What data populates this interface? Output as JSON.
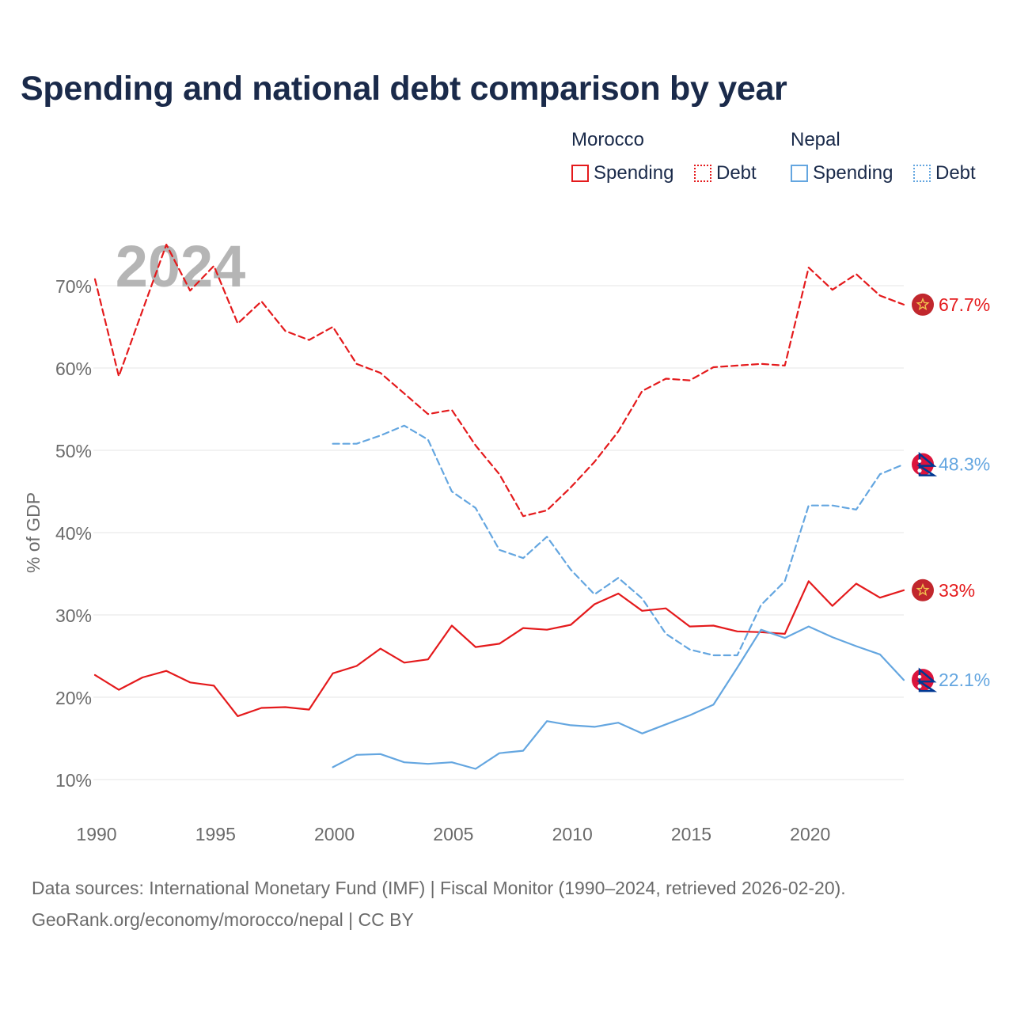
{
  "title": "Spending and national debt comparison by year",
  "legend": {
    "groups": [
      {
        "country": "Morocco",
        "items": [
          {
            "label": "Spending",
            "style": "solid",
            "color": "#e41a1c"
          },
          {
            "label": "Debt",
            "style": "dotted",
            "color": "#e41a1c"
          }
        ]
      },
      {
        "country": "Nepal",
        "items": [
          {
            "label": "Spending",
            "style": "solid",
            "color": "#64a6e0"
          },
          {
            "label": "Debt",
            "style": "dotted",
            "color": "#64a6e0"
          }
        ]
      }
    ]
  },
  "footer": {
    "line1": "Data sources: International Monetary Fund (IMF) | Fiscal Monitor (1990–2024, retrieved 2026-02-20).",
    "line2": "GeoRank.org/economy/morocco/nepal | CC BY"
  },
  "chart_data": {
    "type": "line",
    "title": "Spending and national debt comparison by year",
    "year_label": "2024",
    "ylabel": "% of GDP",
    "xlabel": "",
    "xlim": [
      1990,
      2024
    ],
    "ylim": [
      10,
      75
    ],
    "x_ticks": [
      1990,
      1995,
      2000,
      2005,
      2010,
      2015,
      2020
    ],
    "x_tick_labels": [
      "1990",
      "1995",
      "2000",
      "2005",
      "2010",
      "2015",
      "2020"
    ],
    "y_ticks": [
      10,
      20,
      30,
      40,
      50,
      60,
      70
    ],
    "y_tick_labels": [
      "10%",
      "20%",
      "30%",
      "40%",
      "50%",
      "60%",
      "70%"
    ],
    "grid": true,
    "series": [
      {
        "name": "Morocco Debt",
        "country": "Morocco",
        "metric": "Debt",
        "color": "#e41a1c",
        "style": "dashed",
        "x": [
          1990,
          1991,
          1992,
          1993,
          1994,
          1995,
          1996,
          1997,
          1998,
          1999,
          2000,
          2001,
          2002,
          2003,
          2004,
          2005,
          2006,
          2007,
          2008,
          2009,
          2010,
          2011,
          2012,
          2013,
          2014,
          2015,
          2016,
          2017,
          2018,
          2019,
          2020,
          2021,
          2022,
          2023,
          2024
        ],
        "values": [
          70.8,
          59.0,
          67.0,
          75.0,
          69.4,
          72.4,
          65.4,
          68.1,
          64.5,
          63.4,
          65.0,
          60.5,
          59.4,
          56.9,
          54.4,
          54.9,
          50.6,
          47.1,
          42.0,
          42.7,
          45.5,
          48.6,
          52.3,
          57.2,
          58.7,
          58.5,
          60.1,
          60.3,
          60.5,
          60.3,
          72.2,
          69.5,
          71.4,
          68.8,
          67.7
        ],
        "end_label": "67.7%"
      },
      {
        "name": "Nepal Debt",
        "country": "Nepal",
        "metric": "Debt",
        "color": "#64a6e0",
        "style": "dashed",
        "x": [
          2000,
          2001,
          2002,
          2003,
          2004,
          2005,
          2006,
          2007,
          2008,
          2009,
          2010,
          2011,
          2012,
          2013,
          2014,
          2015,
          2016,
          2017,
          2018,
          2019,
          2020,
          2021,
          2022,
          2023,
          2024
        ],
        "values": [
          50.8,
          50.8,
          51.8,
          53.0,
          51.3,
          45.0,
          43.0,
          37.9,
          36.9,
          39.5,
          35.5,
          32.5,
          34.5,
          32.0,
          27.7,
          25.8,
          25.1,
          25.1,
          31.2,
          34.1,
          43.3,
          43.3,
          42.8,
          47.1,
          48.3
        ],
        "end_label": "48.3%"
      },
      {
        "name": "Morocco Spending",
        "country": "Morocco",
        "metric": "Spending",
        "color": "#e41a1c",
        "style": "solid",
        "x": [
          1990,
          1991,
          1992,
          1993,
          1994,
          1995,
          1996,
          1997,
          1998,
          1999,
          2000,
          2001,
          2002,
          2003,
          2004,
          2005,
          2006,
          2007,
          2008,
          2009,
          2010,
          2011,
          2012,
          2013,
          2014,
          2015,
          2016,
          2017,
          2018,
          2019,
          2020,
          2021,
          2022,
          2023,
          2024
        ],
        "values": [
          22.7,
          20.9,
          22.4,
          23.2,
          21.8,
          21.4,
          17.7,
          18.7,
          18.8,
          18.5,
          22.9,
          23.8,
          25.9,
          24.2,
          24.6,
          28.7,
          26.1,
          26.5,
          28.4,
          28.2,
          28.8,
          31.3,
          32.6,
          30.5,
          30.8,
          28.6,
          28.7,
          28.0,
          27.9,
          27.7,
          34.1,
          31.1,
          33.8,
          32.1,
          33.0
        ],
        "end_label": "33%"
      },
      {
        "name": "Nepal Spending",
        "country": "Nepal",
        "metric": "Spending",
        "color": "#64a6e0",
        "style": "solid",
        "x": [
          2000,
          2001,
          2002,
          2003,
          2004,
          2005,
          2006,
          2007,
          2008,
          2009,
          2010,
          2011,
          2012,
          2013,
          2014,
          2015,
          2016,
          2017,
          2018,
          2019,
          2020,
          2021,
          2022,
          2023,
          2024
        ],
        "values": [
          11.5,
          13.0,
          13.1,
          12.1,
          11.9,
          12.1,
          11.3,
          13.2,
          13.5,
          17.1,
          16.6,
          16.4,
          16.9,
          15.6,
          16.7,
          17.8,
          19.1,
          23.6,
          28.2,
          27.2,
          28.6,
          27.3,
          26.2,
          25.2,
          22.1
        ],
        "end_label": "22.1%"
      }
    ]
  }
}
